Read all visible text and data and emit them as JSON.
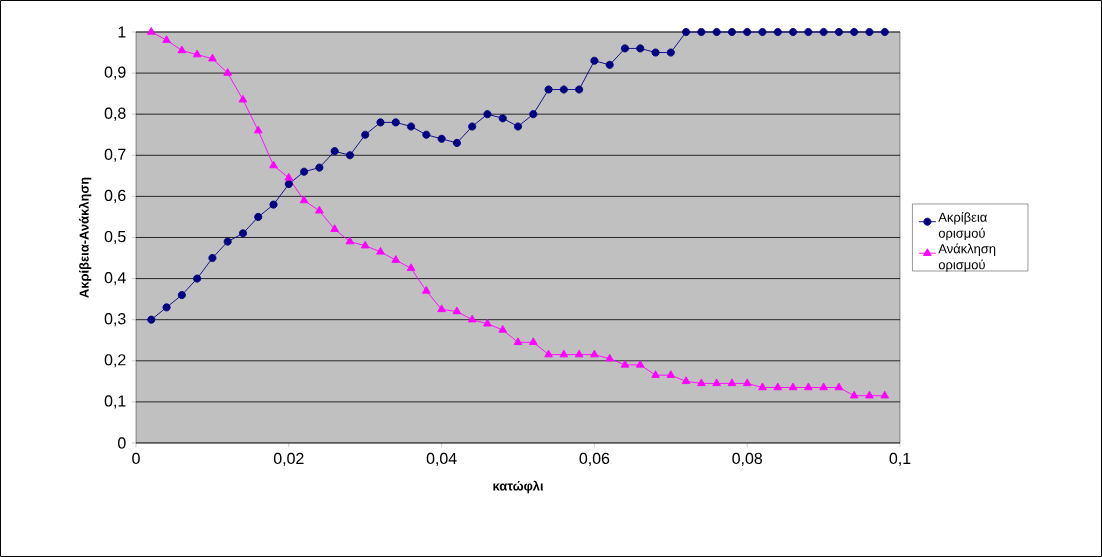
{
  "chart_data": {
    "type": "line",
    "xlabel": "κατώφλι",
    "ylabel": "Ακρίβεια-Ανάκληση",
    "x": [
      0.002,
      0.004,
      0.006,
      0.008,
      0.01,
      0.012,
      0.014,
      0.016,
      0.018,
      0.02,
      0.022,
      0.024,
      0.026,
      0.028,
      0.03,
      0.032,
      0.034,
      0.036,
      0.038,
      0.04,
      0.042,
      0.044,
      0.046,
      0.048,
      0.05,
      0.052,
      0.054,
      0.056,
      0.058,
      0.06,
      0.062,
      0.064,
      0.066,
      0.068,
      0.07,
      0.072,
      0.074,
      0.076,
      0.078,
      0.08,
      0.082,
      0.084,
      0.086,
      0.088,
      0.09,
      0.092,
      0.094,
      0.096,
      0.098
    ],
    "series": [
      {
        "name": "Ακρίβεια ορισμού",
        "color": "#000080",
        "marker": "circle",
        "values": [
          0.3,
          0.33,
          0.36,
          0.4,
          0.45,
          0.49,
          0.51,
          0.55,
          0.58,
          0.63,
          0.66,
          0.67,
          0.71,
          0.7,
          0.75,
          0.78,
          0.78,
          0.77,
          0.75,
          0.74,
          0.73,
          0.77,
          0.8,
          0.79,
          0.77,
          0.8,
          0.86,
          0.86,
          0.86,
          0.93,
          0.92,
          0.96,
          0.96,
          0.95,
          0.95,
          1,
          1,
          1,
          1,
          1,
          1,
          1,
          1,
          1,
          1,
          1,
          1,
          1,
          1
        ]
      },
      {
        "name": "Ανάκληση ορισμού",
        "color": "#ff00ff",
        "marker": "triangle",
        "values": [
          1.0,
          0.98,
          0.955,
          0.945,
          0.935,
          0.9,
          0.835,
          0.76,
          0.675,
          0.645,
          0.59,
          0.565,
          0.52,
          0.49,
          0.48,
          0.465,
          0.445,
          0.425,
          0.37,
          0.325,
          0.32,
          0.3,
          0.29,
          0.275,
          0.245,
          0.245,
          0.215,
          0.215,
          0.215,
          0.215,
          0.205,
          0.19,
          0.19,
          0.165,
          0.165,
          0.15,
          0.145,
          0.145,
          0.145,
          0.145,
          0.135,
          0.135,
          0.135,
          0.135,
          0.135,
          0.135,
          0.115,
          0.115,
          0.115
        ]
      }
    ],
    "xlim": [
      0,
      0.1
    ],
    "xticks": [
      {
        "value": 0,
        "label": "0"
      },
      {
        "value": 0.02,
        "label": "0,02"
      },
      {
        "value": 0.04,
        "label": "0,04"
      },
      {
        "value": 0.06,
        "label": "0,06"
      },
      {
        "value": 0.08,
        "label": "0,08"
      },
      {
        "value": 0.1,
        "label": "0,1"
      }
    ],
    "ylim": [
      0,
      1
    ],
    "yticks": [
      {
        "value": 0,
        "label": "0"
      },
      {
        "value": 0.1,
        "label": "0,1"
      },
      {
        "value": 0.2,
        "label": "0,2"
      },
      {
        "value": 0.3,
        "label": "0,3"
      },
      {
        "value": 0.4,
        "label": "0,4"
      },
      {
        "value": 0.5,
        "label": "0,5"
      },
      {
        "value": 0.6,
        "label": "0,6"
      },
      {
        "value": 0.7,
        "label": "0,7"
      },
      {
        "value": 0.8,
        "label": "0,8"
      },
      {
        "value": 0.9,
        "label": "0,9"
      },
      {
        "value": 1,
        "label": "1"
      }
    ],
    "grid": "y",
    "legend": "right",
    "line_style": "solid"
  }
}
